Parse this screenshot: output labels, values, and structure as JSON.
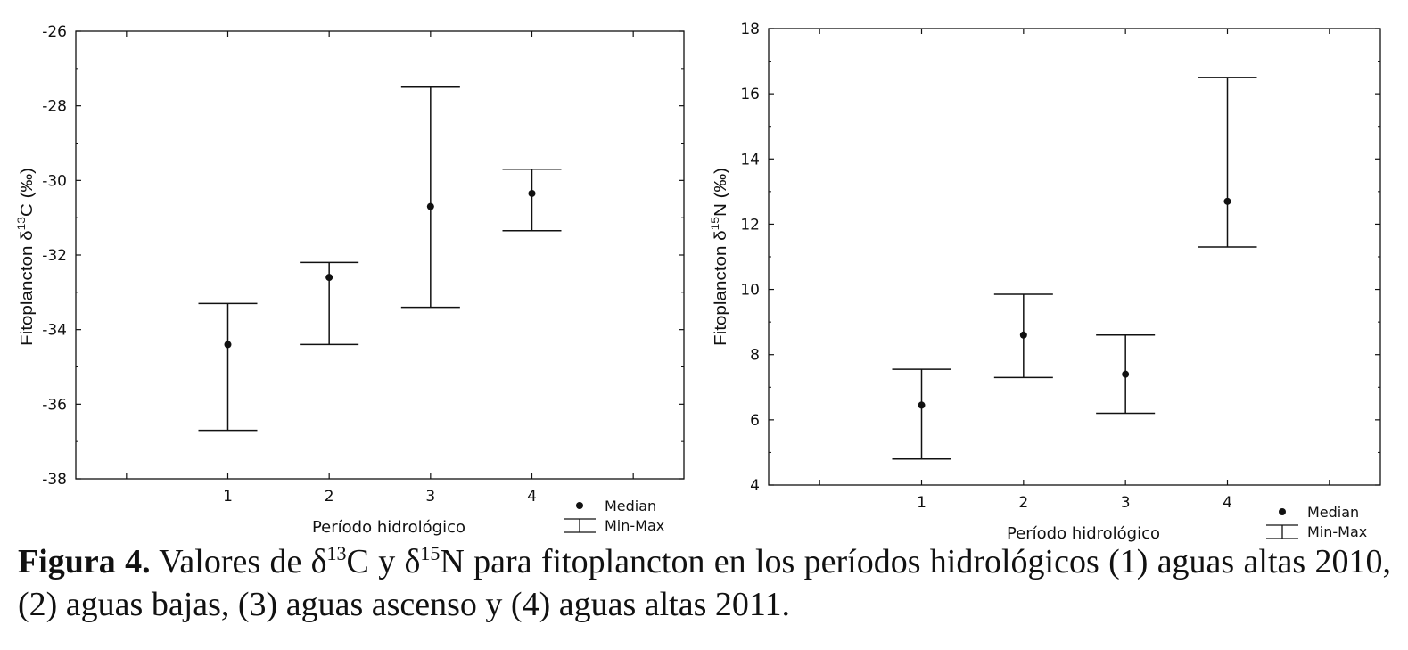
{
  "chart_data": [
    {
      "type": "scatter",
      "xlabel": "Período hidrológico",
      "ylabel_prefix": "Fitoplancton δ",
      "ylabel_sup": "13",
      "ylabel_suffix": "C (‰)",
      "xlim": [
        -0.5,
        5.5
      ],
      "ylim": [
        -38,
        -26
      ],
      "yticks": [
        -38,
        -36,
        -34,
        -32,
        -30,
        -28,
        -26
      ],
      "xticks": [
        1,
        2,
        3,
        4
      ],
      "legend": {
        "placement": "bottom-right",
        "median": "Median",
        "range": "Min-Max"
      },
      "series": [
        {
          "x": 1,
          "median": -34.4,
          "min": -36.7,
          "max": -33.3
        },
        {
          "x": 2,
          "median": -32.6,
          "min": -34.4,
          "max": -32.2
        },
        {
          "x": 3,
          "median": -30.7,
          "min": -33.4,
          "max": -27.5
        },
        {
          "x": 4,
          "median": -30.35,
          "min": -31.35,
          "max": -29.7
        }
      ]
    },
    {
      "type": "scatter",
      "xlabel": "Período hidrológico",
      "ylabel_prefix": "Fitoplancton δ",
      "ylabel_sup": "15",
      "ylabel_suffix": "N (‰)",
      "xlim": [
        -0.5,
        5.5
      ],
      "ylim": [
        4,
        18
      ],
      "yticks": [
        4,
        6,
        8,
        10,
        12,
        14,
        16,
        18
      ],
      "xticks": [
        1,
        2,
        3,
        4
      ],
      "legend": {
        "placement": "bottom-right",
        "median": "Median",
        "range": "Min-Max"
      },
      "series": [
        {
          "x": 1,
          "median": 6.45,
          "min": 4.8,
          "max": 7.55
        },
        {
          "x": 2,
          "median": 8.6,
          "min": 7.3,
          "max": 9.85
        },
        {
          "x": 3,
          "median": 7.4,
          "min": 6.2,
          "max": 8.6
        },
        {
          "x": 4,
          "median": 12.7,
          "min": 11.3,
          "max": 16.5
        }
      ]
    }
  ],
  "caption": {
    "label": "Figura 4.",
    "part1": " Valores de δ",
    "sup1": "13",
    "part2": "C y δ",
    "sup2": "15",
    "part3": "N para fitoplancton en los períodos hidrológicos (1) aguas altas 2010, (2) aguas bajas, (3) aguas ascenso y (4) aguas altas 2011."
  }
}
